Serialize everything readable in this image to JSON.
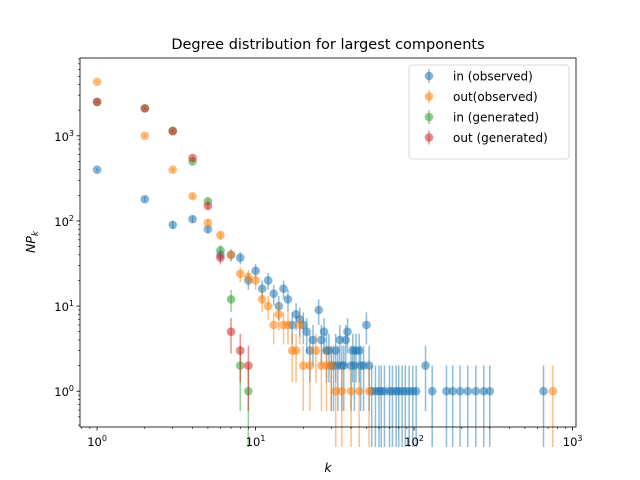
{
  "chart_data": {
    "type": "scatter",
    "title": "Degree distribution for largest components",
    "xlabel": "k",
    "ylabel": "NP",
    "ylabel_sub": "k",
    "xscale": "log",
    "yscale": "log",
    "xlim": [
      0.78,
      1050
    ],
    "ylim": [
      0.38,
      8200
    ],
    "x_ticks": [
      {
        "value": 1,
        "base": "10",
        "exp": "0"
      },
      {
        "value": 10,
        "base": "10",
        "exp": "1"
      },
      {
        "value": 100,
        "base": "10",
        "exp": "2"
      },
      {
        "value": 1000,
        "base": "10",
        "exp": "3"
      }
    ],
    "y_ticks": [
      {
        "value": 1,
        "base": "10",
        "exp": "0"
      },
      {
        "value": 10,
        "base": "10",
        "exp": "1"
      },
      {
        "value": 100,
        "base": "10",
        "exp": "2"
      },
      {
        "value": 1000,
        "base": "10",
        "exp": "3"
      }
    ],
    "grid": false,
    "legend_position": "top-right",
    "marker": "circle with vertical error bar",
    "series": [
      {
        "name": "in (observed)",
        "color": "#1f77b4",
        "points": [
          [
            1,
            400
          ],
          [
            2,
            180
          ],
          [
            3,
            90
          ],
          [
            4,
            105
          ],
          [
            5,
            80
          ],
          [
            6,
            40
          ],
          [
            7,
            40
          ],
          [
            8,
            37
          ],
          [
            9,
            20
          ],
          [
            10,
            26
          ],
          [
            11,
            16
          ],
          [
            12,
            20
          ],
          [
            13,
            14
          ],
          [
            14,
            10
          ],
          [
            15,
            16
          ],
          [
            16,
            12
          ],
          [
            17,
            6
          ],
          [
            18,
            8
          ],
          [
            19,
            7
          ],
          [
            20,
            6
          ],
          [
            21,
            5
          ],
          [
            22,
            3
          ],
          [
            23,
            4
          ],
          [
            25,
            9
          ],
          [
            26,
            4
          ],
          [
            27,
            5
          ],
          [
            28,
            3
          ],
          [
            29,
            3
          ],
          [
            30,
            2
          ],
          [
            31,
            2
          ],
          [
            32,
            3
          ],
          [
            33,
            2
          ],
          [
            34,
            4
          ],
          [
            35,
            2
          ],
          [
            36,
            2
          ],
          [
            37,
            4
          ],
          [
            38,
            5
          ],
          [
            40,
            2
          ],
          [
            41,
            3
          ],
          [
            42,
            2
          ],
          [
            43,
            3
          ],
          [
            45,
            3
          ],
          [
            46,
            2
          ],
          [
            48,
            2
          ],
          [
            50,
            6
          ],
          [
            52,
            2
          ],
          [
            54,
            1
          ],
          [
            57,
            1
          ],
          [
            60,
            1
          ],
          [
            62,
            1
          ],
          [
            65,
            1
          ],
          [
            70,
            1
          ],
          [
            73,
            1
          ],
          [
            77,
            1
          ],
          [
            80,
            1
          ],
          [
            84,
            1
          ],
          [
            88,
            1
          ],
          [
            93,
            1
          ],
          [
            98,
            1
          ],
          [
            103,
            1
          ],
          [
            118,
            2
          ],
          [
            130,
            1
          ],
          [
            160,
            1
          ],
          [
            175,
            1
          ],
          [
            195,
            1
          ],
          [
            218,
            1
          ],
          [
            245,
            1
          ],
          [
            275,
            1
          ],
          [
            300,
            1
          ],
          [
            655,
            1
          ]
        ]
      },
      {
        "name": "out(observed)",
        "color": "#ff7f0e",
        "points": [
          [
            1,
            4300
          ],
          [
            2,
            1000
          ],
          [
            3,
            400
          ],
          [
            4,
            195
          ],
          [
            5,
            95
          ],
          [
            6,
            68
          ],
          [
            7,
            40
          ],
          [
            8,
            24
          ],
          [
            9,
            22
          ],
          [
            10,
            20
          ],
          [
            11,
            12
          ],
          [
            12,
            10
          ],
          [
            13,
            6
          ],
          [
            14,
            8
          ],
          [
            15,
            6
          ],
          [
            16,
            6
          ],
          [
            17,
            3
          ],
          [
            18,
            3
          ],
          [
            19,
            6
          ],
          [
            20,
            2
          ],
          [
            22,
            2
          ],
          [
            24,
            3
          ],
          [
            26,
            2
          ],
          [
            28,
            2
          ],
          [
            30,
            2
          ],
          [
            32,
            1
          ],
          [
            35,
            1
          ],
          [
            40,
            1
          ],
          [
            45,
            1
          ],
          [
            52,
            1
          ],
          [
            750,
            1
          ]
        ]
      },
      {
        "name": "in (generated)",
        "color": "#2ca02c",
        "points": [
          [
            1,
            2500
          ],
          [
            2,
            2100
          ],
          [
            3,
            1150
          ],
          [
            4,
            500
          ],
          [
            5,
            170
          ],
          [
            6,
            45
          ],
          [
            7,
            12
          ],
          [
            8,
            2
          ],
          [
            9,
            1
          ]
        ]
      },
      {
        "name": "out (generated)",
        "color": "#d62728",
        "points": [
          [
            1,
            2500
          ],
          [
            2,
            2100
          ],
          [
            3,
            1130
          ],
          [
            4,
            550
          ],
          [
            5,
            150
          ],
          [
            6,
            37
          ],
          [
            7,
            5
          ],
          [
            8,
            3
          ],
          [
            9,
            2
          ]
        ]
      }
    ]
  }
}
